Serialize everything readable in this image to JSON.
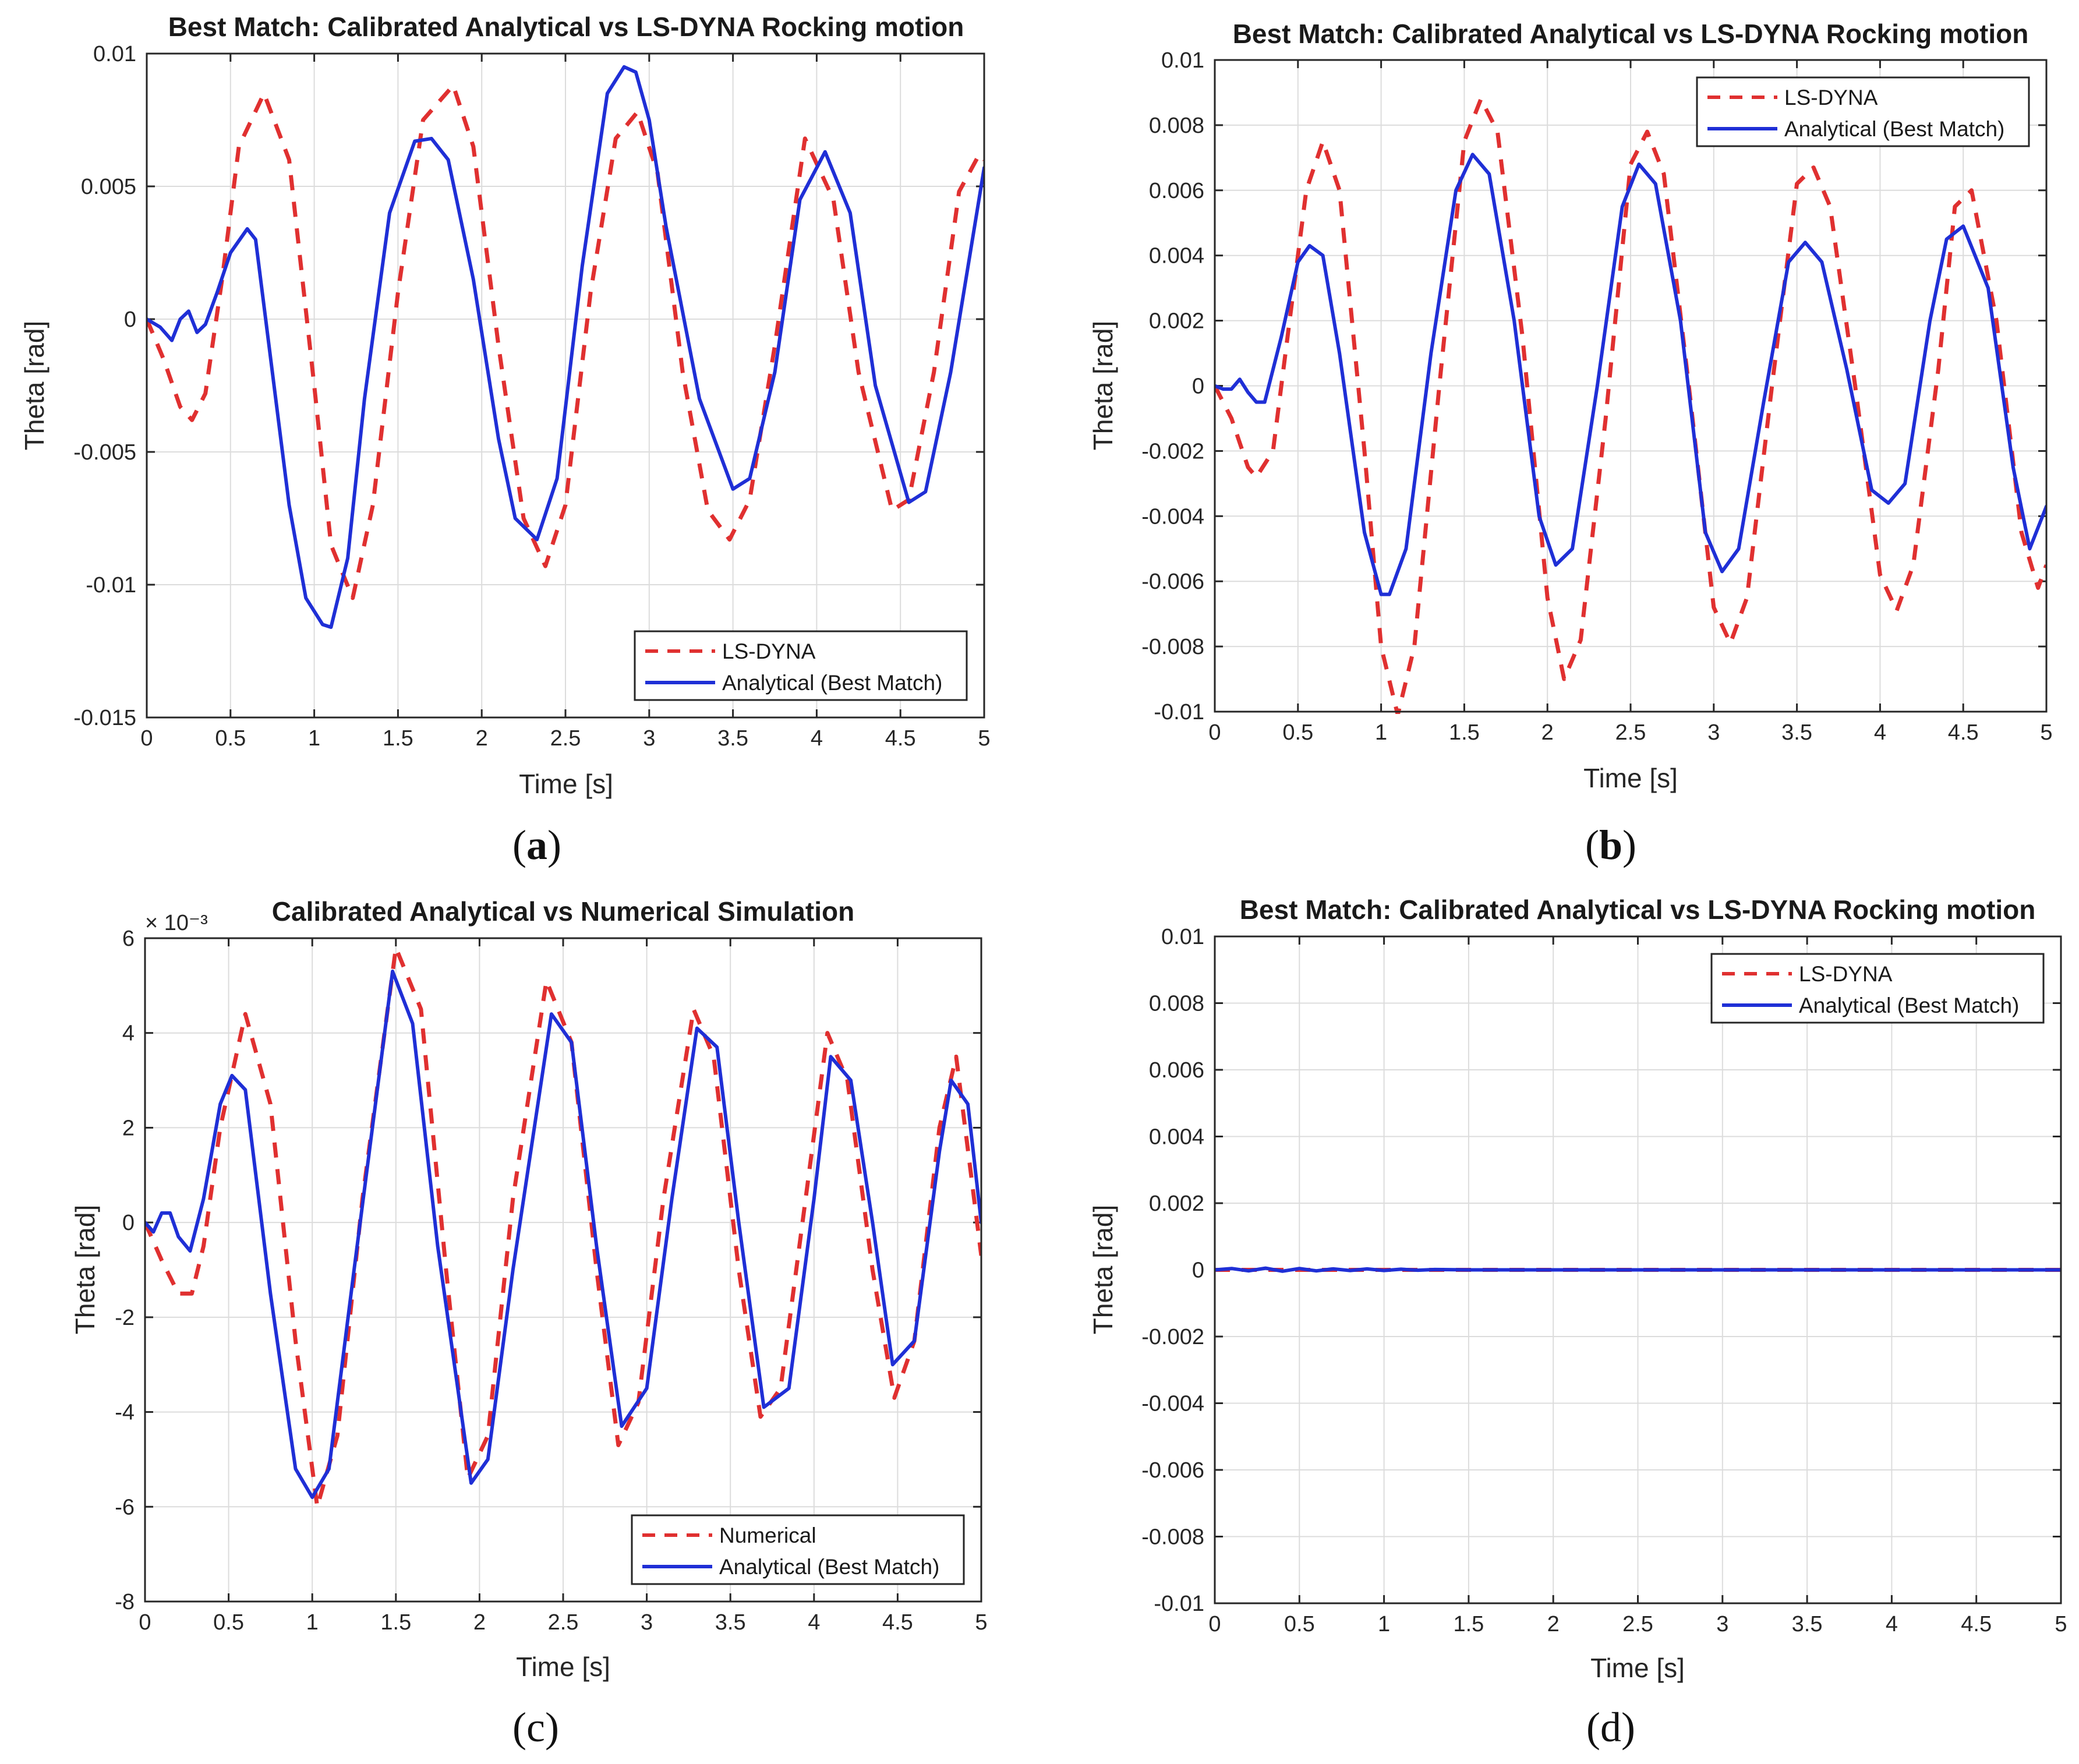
{
  "figure": {
    "captions": [
      "(a)",
      "(b)",
      "(c)",
      "(d)"
    ]
  },
  "colors": {
    "dashed_series": "#e03030",
    "solid_series": "#1f2fd6",
    "grid": "#dcdcdc",
    "axes": "#262626"
  },
  "chart_data": [
    {
      "id": "a",
      "type": "line",
      "title": "Best Match: Calibrated Analytical vs LS-DYNA Rocking motion",
      "xlabel": "Time [s]",
      "ylabel": "Theta [rad]",
      "xlim": [
        0,
        5
      ],
      "ylim": [
        -0.015,
        0.01
      ],
      "xticks": [
        0,
        0.5,
        1,
        1.5,
        2,
        2.5,
        3,
        3.5,
        4,
        4.5,
        5
      ],
      "xtick_labels": [
        "0",
        "0.5",
        "1",
        "1.5",
        "2",
        "2.5",
        "3",
        "3.5",
        "4",
        "4.5",
        "5"
      ],
      "yticks": [
        0.01,
        0.005,
        0,
        -0.005,
        -0.01,
        -0.015
      ],
      "ytick_labels": [
        "0.01",
        "0.005",
        "0",
        "-0.005",
        "-0.01",
        "-0.015"
      ],
      "exponent_label": "",
      "grid": true,
      "legend_position": "bottom-right",
      "series": [
        {
          "name": "LS-DYNA",
          "style": "dashed",
          "color": "#e03030",
          "x": [
            0,
            0.1,
            0.2,
            0.27,
            0.35,
            0.45,
            0.55,
            0.7,
            0.85,
            1.0,
            1.1,
            1.23,
            1.35,
            1.5,
            1.65,
            1.83,
            1.95,
            2.1,
            2.25,
            2.38,
            2.5,
            2.65,
            2.8,
            2.93,
            3.05,
            3.2,
            3.35,
            3.48,
            3.6,
            3.75,
            3.93,
            4.1,
            4.25,
            4.45,
            4.55,
            4.7,
            4.85,
            4.97,
            5.0
          ],
          "y": [
            0,
            -0.0015,
            -0.0033,
            -0.0038,
            -0.0028,
            0.0015,
            0.0065,
            0.0085,
            0.006,
            -0.0025,
            -0.0085,
            -0.0105,
            -0.007,
            0.001,
            0.0075,
            0.0088,
            0.0065,
            -0.001,
            -0.0075,
            -0.0093,
            -0.007,
            0.001,
            0.0068,
            0.0078,
            0.0055,
            -0.002,
            -0.0072,
            -0.0083,
            -0.0068,
            -0.001,
            0.0068,
            0.0045,
            -0.002,
            -0.0072,
            -0.0068,
            -0.002,
            0.0048,
            0.0062,
            0.006
          ]
        },
        {
          "name": "Analytical (Best Match)",
          "style": "solid",
          "color": "#1f2fd6",
          "x": [
            0,
            0.08,
            0.15,
            0.2,
            0.25,
            0.3,
            0.35,
            0.42,
            0.5,
            0.6,
            0.65,
            0.75,
            0.85,
            0.95,
            1.05,
            1.1,
            1.2,
            1.3,
            1.45,
            1.6,
            1.7,
            1.8,
            1.95,
            2.1,
            2.2,
            2.33,
            2.45,
            2.6,
            2.75,
            2.85,
            2.92,
            3.0,
            3.1,
            3.3,
            3.5,
            3.6,
            3.75,
            3.9,
            4.05,
            4.2,
            4.35,
            4.55,
            4.65,
            4.8,
            5.0
          ],
          "y": [
            0,
            -0.0003,
            -0.0008,
            0,
            0.0003,
            -0.0005,
            -0.0002,
            0.001,
            0.0025,
            0.0034,
            0.003,
            -0.002,
            -0.007,
            -0.0105,
            -0.0115,
            -0.0116,
            -0.009,
            -0.003,
            0.004,
            0.0067,
            0.0068,
            0.006,
            0.0015,
            -0.0045,
            -0.0075,
            -0.0083,
            -0.006,
            0.002,
            0.0085,
            0.0095,
            0.0093,
            0.0075,
            0.0035,
            -0.003,
            -0.0064,
            -0.006,
            -0.002,
            0.0045,
            0.0063,
            0.004,
            -0.0025,
            -0.0069,
            -0.0065,
            -0.002,
            0.0057
          ]
        }
      ]
    },
    {
      "id": "b",
      "type": "line",
      "title": "Best Match: Calibrated Analytical vs LS-DYNA Rocking motion",
      "xlabel": "Time [s]",
      "ylabel": "Theta [rad]",
      "xlim": [
        0,
        5
      ],
      "ylim": [
        -0.01,
        0.01
      ],
      "xticks": [
        0,
        0.5,
        1,
        1.5,
        2,
        2.5,
        3,
        3.5,
        4,
        4.5,
        5
      ],
      "xtick_labels": [
        "0",
        "0.5",
        "1",
        "1.5",
        "2",
        "2.5",
        "3",
        "3.5",
        "4",
        "4.5",
        "5"
      ],
      "yticks": [
        0.01,
        0.008,
        0.006,
        0.004,
        0.002,
        0,
        -0.002,
        -0.004,
        -0.006,
        -0.008,
        -0.01
      ],
      "ytick_labels": [
        "0.01",
        "0.008",
        "0.006",
        "0.004",
        "0.002",
        "0",
        "-0.002",
        "-0.004",
        "-0.006",
        "-0.008",
        "-0.01"
      ],
      "exponent_label": "",
      "grid": true,
      "legend_position": "top-right",
      "series": [
        {
          "name": "LS-DYNA",
          "style": "dashed",
          "color": "#e03030",
          "x": [
            0,
            0.1,
            0.2,
            0.25,
            0.35,
            0.45,
            0.55,
            0.65,
            0.75,
            0.9,
            1.0,
            1.1,
            1.2,
            1.35,
            1.5,
            1.6,
            1.7,
            1.85,
            2.0,
            2.1,
            2.2,
            2.35,
            2.5,
            2.6,
            2.7,
            2.85,
            3.0,
            3.1,
            3.2,
            3.35,
            3.5,
            3.6,
            3.7,
            3.85,
            4.0,
            4.1,
            4.2,
            4.35,
            4.45,
            4.55,
            4.7,
            4.85,
            4.95,
            5.0
          ],
          "y": [
            0,
            -0.001,
            -0.0025,
            -0.0028,
            -0.002,
            0.002,
            0.006,
            0.0075,
            0.006,
            -0.002,
            -0.008,
            -0.0101,
            -0.008,
            0,
            0.0075,
            0.0088,
            0.0078,
            0.0015,
            -0.0065,
            -0.009,
            -0.0078,
            -0.001,
            0.0068,
            0.0078,
            0.0065,
            0,
            -0.0068,
            -0.0079,
            -0.0065,
            0,
            0.0062,
            0.0067,
            0.0055,
            0,
            -0.0058,
            -0.0069,
            -0.0055,
            0.0005,
            0.0055,
            0.006,
            0.002,
            -0.0045,
            -0.0062,
            -0.0055
          ]
        },
        {
          "name": "Analytical (Best Match)",
          "style": "solid",
          "color": "#1f2fd6",
          "x": [
            0,
            0.05,
            0.1,
            0.15,
            0.2,
            0.25,
            0.3,
            0.4,
            0.5,
            0.57,
            0.65,
            0.75,
            0.9,
            1.0,
            1.05,
            1.15,
            1.3,
            1.45,
            1.55,
            1.65,
            1.8,
            1.95,
            2.05,
            2.15,
            2.3,
            2.45,
            2.55,
            2.65,
            2.8,
            2.95,
            3.05,
            3.15,
            3.3,
            3.45,
            3.55,
            3.65,
            3.8,
            3.95,
            4.05,
            4.15,
            4.3,
            4.4,
            4.5,
            4.65,
            4.8,
            4.9,
            5.0
          ],
          "y": [
            0,
            -0.0001,
            -0.0001,
            0.0002,
            -0.0002,
            -0.0005,
            -0.0005,
            0.0015,
            0.0038,
            0.0043,
            0.004,
            0.001,
            -0.0045,
            -0.0064,
            -0.0064,
            -0.005,
            0.001,
            0.006,
            0.0071,
            0.0065,
            0.002,
            -0.004,
            -0.0055,
            -0.005,
            0,
            0.0055,
            0.0068,
            0.0062,
            0.002,
            -0.0045,
            -0.0057,
            -0.005,
            -0.0005,
            0.0038,
            0.0044,
            0.0038,
            0.0005,
            -0.0032,
            -0.0036,
            -0.003,
            0.002,
            0.0045,
            0.0049,
            0.003,
            -0.0025,
            -0.005,
            -0.0037
          ]
        }
      ]
    },
    {
      "id": "c",
      "type": "line",
      "title": "Calibrated Analytical vs Numerical Simulation",
      "xlabel": "Time [s]",
      "ylabel": "Theta [rad]",
      "xlim": [
        0,
        5
      ],
      "ylim": [
        -8,
        6
      ],
      "xticks": [
        0,
        0.5,
        1,
        1.5,
        2,
        2.5,
        3,
        3.5,
        4,
        4.5,
        5
      ],
      "xtick_labels": [
        "0",
        "0.5",
        "1",
        "1.5",
        "2",
        "2.5",
        "3",
        "3.5",
        "4",
        "4.5",
        "5"
      ],
      "yticks": [
        6,
        4,
        2,
        0,
        -2,
        -4,
        -6,
        -8
      ],
      "ytick_labels": [
        "6",
        "4",
        "2",
        "0",
        "-2",
        "-4",
        "-6",
        "-8"
      ],
      "exponent_label": "× 10⁻³",
      "grid": true,
      "legend_position": "bottom-right",
      "series": [
        {
          "name": "Numerical",
          "style": "dashed",
          "color": "#e03030",
          "x": [
            0,
            0.1,
            0.2,
            0.28,
            0.35,
            0.45,
            0.6,
            0.75,
            0.9,
            1.03,
            1.15,
            1.3,
            1.5,
            1.65,
            1.8,
            1.93,
            2.05,
            2.2,
            2.4,
            2.55,
            2.7,
            2.83,
            2.95,
            3.1,
            3.28,
            3.4,
            3.55,
            3.68,
            3.8,
            3.95,
            4.08,
            4.2,
            4.35,
            4.48,
            4.6,
            4.75,
            4.85,
            5.0
          ],
          "y": [
            0,
            -0.8,
            -1.5,
            -1.5,
            -0.5,
            2,
            4.4,
            2.5,
            -2.5,
            -6.0,
            -4.5,
            0.5,
            5.8,
            4.5,
            -1,
            -5.4,
            -4.5,
            0.5,
            5.1,
            3.8,
            -1,
            -4.7,
            -3.8,
            0.5,
            4.5,
            3.5,
            -1,
            -4.1,
            -3.5,
            0.5,
            4.0,
            3.0,
            -1,
            -3.7,
            -2.5,
            2,
            3.5,
            -0.7
          ]
        },
        {
          "name": "Analytical (Best Match)",
          "style": "solid",
          "color": "#1f2fd6",
          "x": [
            0,
            0.05,
            0.1,
            0.15,
            0.2,
            0.27,
            0.35,
            0.45,
            0.52,
            0.6,
            0.75,
            0.9,
            1.0,
            1.1,
            1.25,
            1.48,
            1.6,
            1.75,
            1.95,
            2.05,
            2.2,
            2.43,
            2.55,
            2.7,
            2.85,
            3.0,
            3.15,
            3.3,
            3.42,
            3.55,
            3.7,
            3.85,
            4.0,
            4.1,
            4.22,
            4.35,
            4.47,
            4.6,
            4.75,
            4.82,
            4.92,
            5.0
          ],
          "y": [
            0,
            -0.2,
            0.2,
            0.2,
            -0.3,
            -0.6,
            0.5,
            2.5,
            3.1,
            2.8,
            -1.5,
            -5.2,
            -5.8,
            -5.2,
            -1,
            5.3,
            4.2,
            -0.5,
            -5.5,
            -5,
            -1,
            4.4,
            3.8,
            -0.5,
            -4.3,
            -3.5,
            0.5,
            4.1,
            3.7,
            0,
            -3.9,
            -3.5,
            0.5,
            3.5,
            3.0,
            0,
            -3.0,
            -2.5,
            1.5,
            3.0,
            2.5,
            0
          ]
        }
      ]
    },
    {
      "id": "d",
      "type": "line",
      "title": "Best Match: Calibrated Analytical vs LS-DYNA Rocking motion",
      "xlabel": "Time [s]",
      "ylabel": "Theta [rad]",
      "xlim": [
        0,
        5
      ],
      "ylim": [
        -0.01,
        0.01
      ],
      "xticks": [
        0,
        0.5,
        1,
        1.5,
        2,
        2.5,
        3,
        3.5,
        4,
        4.5,
        5
      ],
      "xtick_labels": [
        "0",
        "0.5",
        "1",
        "1.5",
        "2",
        "2.5",
        "3",
        "3.5",
        "4",
        "4.5",
        "5"
      ],
      "yticks": [
        0.01,
        0.008,
        0.006,
        0.004,
        0.002,
        0,
        -0.002,
        -0.004,
        -0.006,
        -0.008,
        -0.01
      ],
      "ytick_labels": [
        "0.01",
        "0.008",
        "0.006",
        "0.004",
        "0.002",
        "0",
        "-0.002",
        "-0.004",
        "-0.006",
        "-0.008",
        "-0.01"
      ],
      "exponent_label": "",
      "grid": true,
      "legend_position": "top-right",
      "series": [
        {
          "name": "LS-DYNA",
          "style": "dashed",
          "color": "#e03030",
          "x": [
            0,
            0.5,
            1,
            1.5,
            2,
            2.5,
            3,
            3.5,
            4,
            4.5,
            5
          ],
          "y": [
            0,
            0,
            0,
            0,
            0,
            0,
            0,
            0,
            0,
            0,
            0
          ]
        },
        {
          "name": "Analytical (Best Match)",
          "style": "solid",
          "color": "#1f2fd6",
          "x": [
            0,
            0.1,
            0.2,
            0.3,
            0.4,
            0.5,
            0.6,
            0.7,
            0.8,
            0.9,
            1.0,
            1.1,
            1.2,
            1.3,
            1.5,
            2,
            2.5,
            3,
            3.5,
            4,
            4.5,
            5
          ],
          "y": [
            0,
            4e-05,
            -3e-05,
            5e-05,
            -4e-05,
            4e-05,
            -3e-05,
            3e-05,
            -2e-05,
            3e-05,
            -2e-05,
            2e-05,
            -1e-05,
            1e-05,
            0,
            0,
            0,
            0,
            0,
            0,
            0,
            0
          ]
        }
      ]
    }
  ]
}
